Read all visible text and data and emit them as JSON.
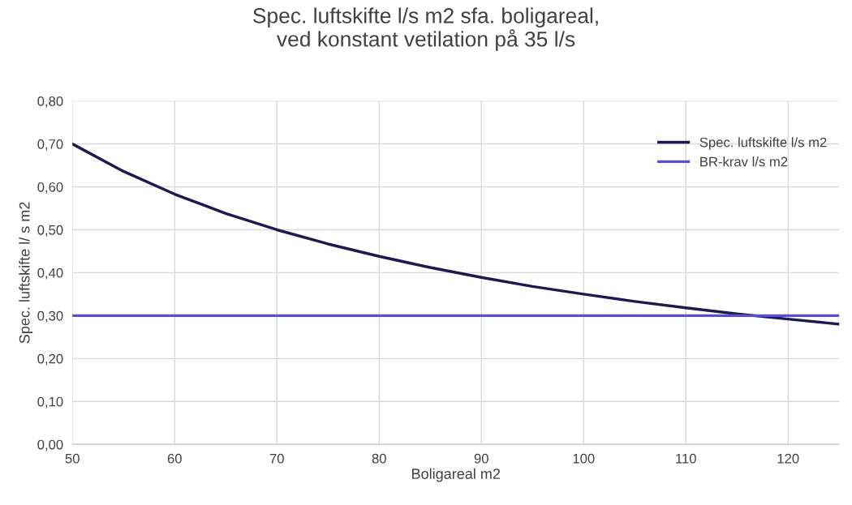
{
  "chart_data": {
    "type": "line",
    "title": "Spec. luftskifte l/s m2 sfa. boligareal,\nved konstant vetilation på 35 l/s",
    "xlabel": "Boligareal m2",
    "ylabel": "Spec. luftskifte l/ s m2",
    "x": [
      50,
      55,
      60,
      65,
      70,
      75,
      80,
      85,
      90,
      95,
      100,
      105,
      110,
      115,
      120,
      125
    ],
    "series": [
      {
        "name": "Spec. luftskifte l/s m2",
        "color": "#1e1a4f",
        "values": [
          0.7,
          0.636,
          0.583,
          0.538,
          0.5,
          0.467,
          0.438,
          0.412,
          0.389,
          0.368,
          0.35,
          0.333,
          0.318,
          0.304,
          0.292,
          0.28
        ]
      },
      {
        "name": "BR-krav l/s m2",
        "color": "#5b4fc4",
        "x": [
          50,
          125
        ],
        "values": [
          0.3,
          0.3
        ]
      }
    ],
    "xlim": [
      50,
      125
    ],
    "xticks": [
      50,
      60,
      70,
      80,
      90,
      100,
      110,
      120
    ],
    "ylim": [
      0,
      0.8
    ],
    "yticks": [
      {
        "value": 0,
        "label": "0,00"
      },
      {
        "value": 0.1,
        "label": "0,10"
      },
      {
        "value": 0.2,
        "label": "0,20"
      },
      {
        "value": 0.3,
        "label": "0,30"
      },
      {
        "value": 0.4,
        "label": "0,40"
      },
      {
        "value": 0.5,
        "label": "0,50"
      },
      {
        "value": 0.6,
        "label": "0,60"
      },
      {
        "value": 0.7,
        "label": "0,70"
      },
      {
        "value": 0.8,
        "label": "0,80"
      }
    ],
    "grid": true,
    "legend": "top right",
    "marker": "none",
    "line_style": "solid"
  }
}
